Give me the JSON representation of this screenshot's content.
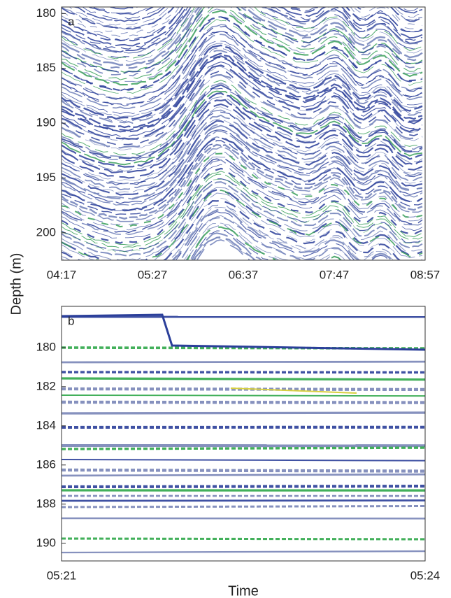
{
  "chart_data": [
    {
      "type": "echogram",
      "panel": "a",
      "ylabel": "Depth (m)",
      "ylim": [
        179.4,
        202.5
      ],
      "yticks": [
        180,
        185,
        190,
        195,
        200
      ],
      "xticks": [
        "04:17",
        "05:27",
        "06:37",
        "07:47",
        "08:57"
      ]
    },
    {
      "type": "echogram",
      "panel": "b",
      "xlabel": "Time",
      "ylim": [
        177.9,
        190.9
      ],
      "yticks": [
        180,
        182,
        184,
        186,
        188,
        190
      ],
      "xticks": [
        "05:21",
        "05:24"
      ]
    }
  ]
}
